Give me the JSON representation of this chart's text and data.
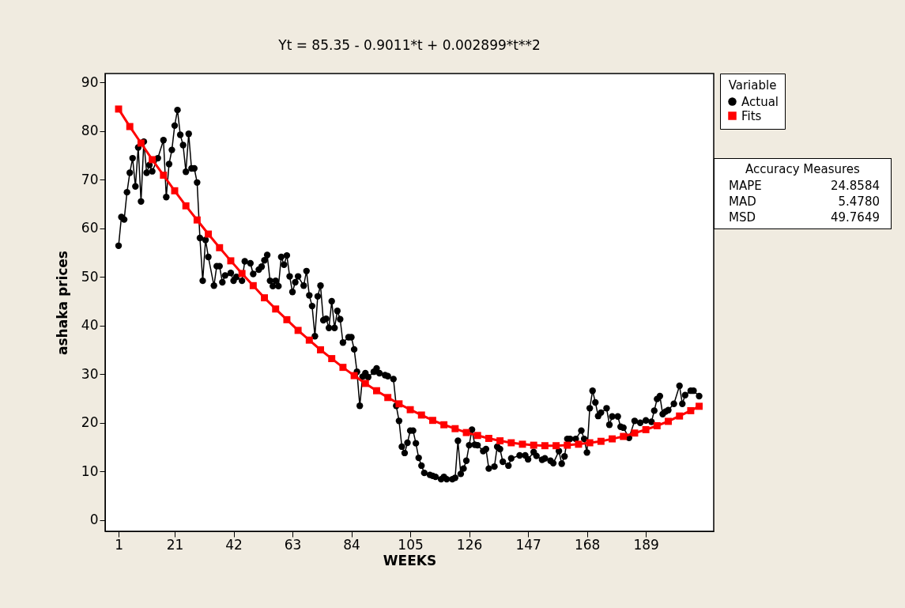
{
  "chart_data": {
    "type": "line",
    "title": "Yt = 85.35 - 0.9011*t + 0.002899*t**2",
    "xlabel": "WEEKS",
    "ylabel": "ashaka prices",
    "legend_title": "Variable",
    "legend": "top right",
    "xlim": [
      -3.8,
      213.2
    ],
    "xticks": [
      1,
      21,
      42,
      63,
      84,
      105,
      126,
      147,
      168,
      189
    ],
    "ylim": [
      -2.3,
      91.8
    ],
    "yticks": [
      0,
      10,
      20,
      30,
      40,
      50,
      60,
      70,
      80,
      90
    ],
    "grid": false,
    "line_style": "solid",
    "annotations": [
      "Accuracy Measures",
      "MAPE 24.8584",
      "MAD 5.4780",
      "MSD 49.7649"
    ],
    "series": [
      {
        "name": "Actual",
        "color": "#000000",
        "marker": "circle",
        "x": [
          1,
          2,
          3,
          4,
          5,
          6,
          7,
          8,
          9,
          10,
          11,
          12,
          13,
          15,
          17,
          18,
          19,
          20,
          21,
          22,
          23,
          24,
          25,
          26,
          27,
          28,
          29,
          30,
          31,
          32,
          33,
          35,
          36,
          37,
          38,
          39,
          41,
          42,
          43,
          45,
          46,
          48,
          49,
          51,
          52,
          53,
          54,
          55,
          56,
          57,
          58,
          59,
          60,
          61,
          62,
          63,
          64,
          65,
          67,
          68,
          69,
          70,
          71,
          72,
          73,
          74,
          75,
          76,
          77,
          78,
          79,
          80,
          81,
          83,
          84,
          85,
          86,
          87,
          88,
          89,
          90,
          92,
          93,
          94,
          96,
          97,
          99,
          100,
          101,
          102,
          103,
          104,
          105,
          106,
          107,
          108,
          109,
          110,
          112,
          113,
          114,
          116,
          117,
          118,
          120,
          121,
          122,
          123,
          124,
          125,
          126,
          127,
          128,
          129,
          131,
          132,
          133,
          135,
          136,
          137,
          138,
          140,
          141,
          144,
          146,
          147,
          149,
          150,
          152,
          153,
          155,
          156,
          158,
          159,
          160,
          161,
          162,
          164,
          166,
          167,
          168,
          169,
          170,
          171,
          172,
          173,
          175,
          176,
          177,
          179,
          180,
          181,
          183,
          185,
          187,
          189,
          191,
          192,
          193,
          194,
          195,
          196,
          197,
          199,
          201,
          202,
          203,
          205,
          206,
          208
        ],
        "values": [
          56.4,
          62.3,
          61.8,
          67.4,
          71.4,
          74.4,
          68.6,
          76.6,
          65.5,
          77.8,
          71.4,
          73.0,
          71.7,
          74.4,
          78.1,
          66.4,
          73.2,
          76.1,
          81.1,
          84.3,
          79.2,
          77.1,
          71.6,
          79.4,
          72.3,
          72.3,
          69.4,
          58.0,
          49.2,
          57.6,
          54.1,
          48.2,
          52.2,
          52.2,
          48.9,
          50.3,
          50.8,
          49.2,
          50.0,
          49.2,
          53.2,
          52.8,
          50.6,
          51.5,
          52.1,
          53.4,
          54.5,
          49.2,
          48.1,
          49.2,
          48.1,
          54.1,
          52.5,
          54.4,
          50.1,
          46.9,
          48.9,
          50.1,
          48.2,
          51.2,
          46.2,
          44.0,
          37.8,
          46.0,
          48.2,
          41.1,
          41.4,
          39.5,
          45.0,
          39.5,
          43.0,
          41.3,
          36.5,
          37.6,
          37.6,
          35.1,
          30.5,
          23.5,
          29.5,
          30.2,
          29.4,
          30.5,
          31.2,
          30.2,
          29.8,
          29.6,
          29.0,
          23.5,
          20.4,
          15.1,
          13.8,
          15.9,
          18.4,
          18.4,
          15.8,
          12.8,
          11.2,
          9.7,
          9.3,
          9.1,
          8.9,
          8.4,
          8.9,
          8.4,
          8.4,
          8.7,
          16.3,
          9.5,
          10.6,
          12.2,
          15.4,
          18.6,
          15.5,
          15.4,
          14.2,
          14.6,
          10.6,
          11.0,
          15.1,
          14.6,
          12.0,
          11.2,
          12.7,
          13.3,
          13.3,
          12.5,
          14.0,
          13.2,
          12.4,
          12.7,
          12.2,
          11.7,
          14.2,
          11.6,
          13.1,
          16.7,
          16.7,
          16.7,
          18.4,
          16.7,
          13.9,
          23.0,
          26.6,
          24.2,
          21.4,
          22.1,
          23.0,
          19.6,
          21.3,
          21.3,
          19.2,
          19.0,
          16.9,
          20.4,
          20.0,
          20.5,
          20.2,
          22.5,
          24.9,
          25.5,
          21.8,
          22.3,
          22.6,
          23.9,
          27.6,
          23.9,
          25.7,
          26.6,
          26.6,
          25.5
        ]
      },
      {
        "name": "Fits",
        "color": "#ff0000",
        "marker": "square",
        "x": [
          1,
          5,
          9,
          13,
          17,
          21,
          25,
          29,
          33,
          37,
          41,
          45,
          49,
          53,
          57,
          61,
          65,
          69,
          73,
          77,
          81,
          85,
          89,
          93,
          97,
          101,
          105,
          109,
          113,
          117,
          121,
          125,
          129,
          133,
          137,
          141,
          145,
          149,
          153,
          157,
          161,
          165,
          169,
          173,
          177,
          181,
          185,
          189,
          193,
          197,
          201,
          205,
          208
        ],
        "values": [
          84.5,
          80.9,
          77.5,
          74.1,
          70.9,
          67.7,
          64.6,
          61.7,
          58.8,
          56.0,
          53.3,
          50.7,
          48.2,
          45.7,
          43.4,
          41.2,
          39.0,
          37.0,
          35.0,
          33.2,
          31.4,
          29.7,
          28.1,
          26.6,
          25.2,
          23.9,
          22.7,
          21.6,
          20.5,
          19.6,
          18.8,
          18.0,
          17.4,
          16.8,
          16.3,
          15.9,
          15.6,
          15.4,
          15.3,
          15.3,
          15.4,
          15.6,
          15.9,
          16.2,
          16.7,
          17.2,
          17.9,
          18.6,
          19.4,
          20.3,
          21.4,
          22.5,
          23.4
        ]
      }
    ]
  }
}
